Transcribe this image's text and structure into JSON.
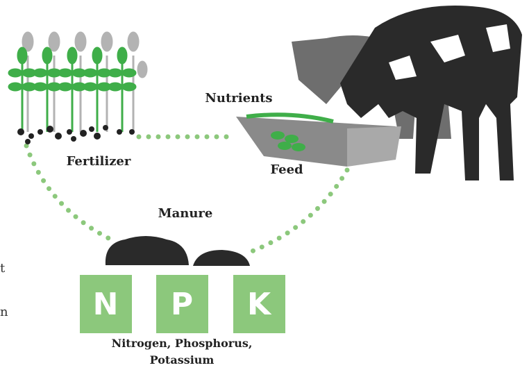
{
  "labels": {
    "nutrients": "Nutrients",
    "fertilizer": "Fertilizer",
    "feed": "Feed",
    "manure": "Manure"
  },
  "npk": [
    {
      "letter": "N"
    },
    {
      "letter": "P"
    },
    {
      "letter": "K"
    }
  ],
  "caption": [
    "Nitrogen, Phosphorus,",
    "Potassium"
  ],
  "edge_text": [
    "t",
    "n"
  ]
}
